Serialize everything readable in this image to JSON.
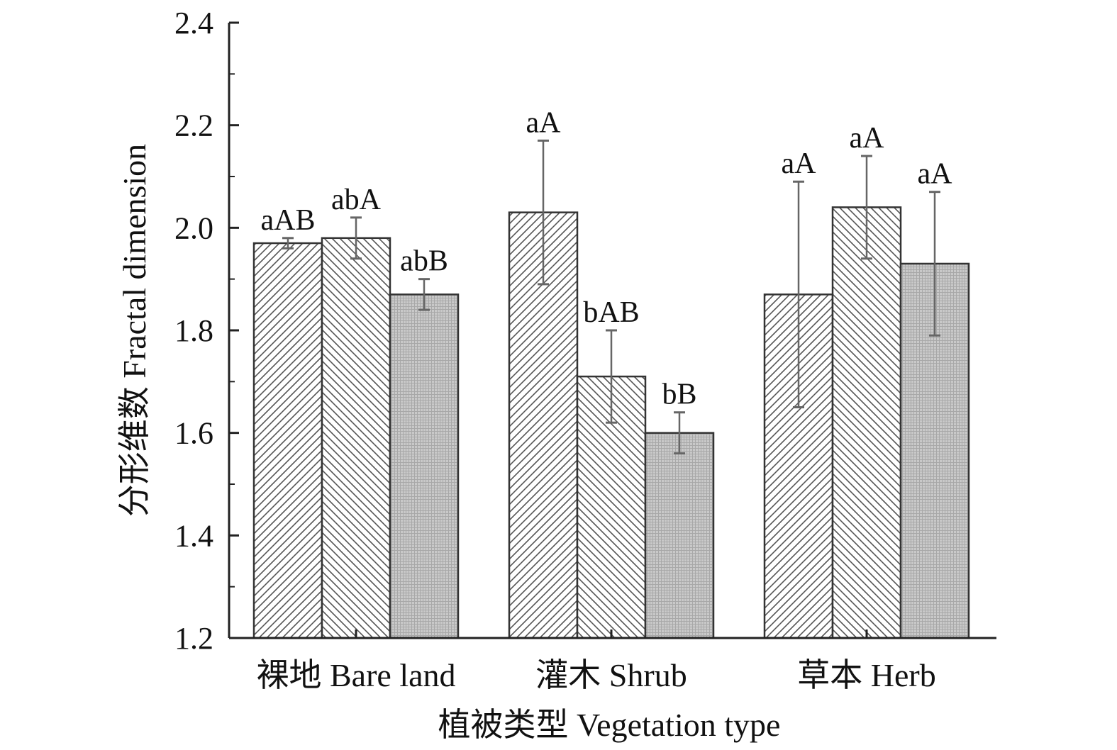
{
  "chart_data": {
    "type": "bar",
    "title": "",
    "xlabel": "植被类型 Vegetation type",
    "ylabel": "分形维数 Fractal dimension",
    "ylim": [
      1.2,
      2.4
    ],
    "yticks": [
      "1.2",
      "1.4",
      "1.6",
      "1.8",
      "2.0",
      "2.2",
      "2.4"
    ],
    "categories": [
      "裸地 Bare land",
      "灌木 Shrub",
      "草本 Herb"
    ],
    "grid": false,
    "legend": "none",
    "series": [
      {
        "pattern": "diagonal-up",
        "values": [
          1.97,
          2.03,
          1.87
        ],
        "errors": [
          0.01,
          0.14,
          0.22
        ],
        "labels": [
          "aAB",
          "aA",
          "aA"
        ]
      },
      {
        "pattern": "diagonal-down",
        "values": [
          1.98,
          1.71,
          2.04
        ],
        "errors": [
          0.04,
          0.09,
          0.1
        ],
        "labels": [
          "abA",
          "bAB",
          "aA"
        ]
      },
      {
        "pattern": "grid-fill",
        "values": [
          1.87,
          1.6,
          1.93
        ],
        "errors": [
          0.03,
          0.04,
          0.14
        ],
        "labels": [
          "abB",
          "bB",
          "aA"
        ]
      }
    ],
    "colors": {
      "axis": "#222222",
      "bar_stroke": "#333333",
      "hatch": "#555555",
      "gray_fill": "#c4c4c4",
      "error": "#666666"
    }
  }
}
